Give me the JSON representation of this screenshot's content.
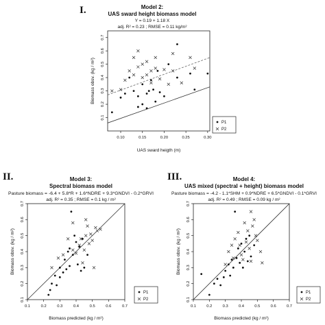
{
  "panels": {
    "p1": {
      "roman": "I.",
      "title1": "Model 2:",
      "title2": "UAS sward height biomass model",
      "eq": "Y = 0.19 + 1.18 X",
      "stats": "adj. R² = 0.23 ; RMSE = 0.11 kg/m²"
    },
    "p2": {
      "roman": "II.",
      "title1": "Model 3:",
      "title2": "Spectral biomass model",
      "eq": "Pasture biomass = -6.4 + 5.8*R + 1.6*NDRE + 9.3*GNDVI - 0.2*GRVI",
      "stats": "adj. R² = 0.35 ; RMSE = 0.1 kg / m²"
    },
    "p3": {
      "roman": "III.",
      "title1": "Model 4:",
      "title2": "UAS mixed (spectral + height) biomass model",
      "eq": "Pasture biomass = -4.2 - 1.1*SHM + 0.9*NDRE + 6.5*GNDVI - 0.1*GRVI",
      "stats": "adj. R² = 0.49 ; RMSE = 0.09 kg / m²"
    }
  },
  "chart_data": [
    {
      "type": "scatter",
      "xlabel": "UAS sward heigth (m)",
      "ylabel": "Biomass obsv. (kg / m²)",
      "xlim": [
        0.07,
        0.305
      ],
      "ylim": [
        0.0,
        0.75
      ],
      "xticks": [
        0.1,
        0.15,
        0.2,
        0.25,
        0.3
      ],
      "yticks": [
        0.1,
        0.2,
        0.3,
        0.4,
        0.5,
        0.6,
        0.7
      ],
      "xtick_labels": [
        "0.10",
        "0.15",
        "0.20",
        "0.25",
        "0.30"
      ],
      "ytick_labels": [
        "0.1",
        "0.2",
        "0.3",
        "0.4",
        "0.5",
        "0.6",
        "0.7"
      ],
      "lines": [
        {
          "style": "solid",
          "points": [
            [
              0.07,
              0.06
            ],
            [
              0.305,
              0.33
            ]
          ]
        },
        {
          "style": "dashed",
          "points": [
            [
              0.07,
              0.27
            ],
            [
              0.305,
              0.55
            ]
          ]
        }
      ],
      "legend": [
        "P1",
        "P2"
      ],
      "legend_position": "lower-right",
      "series": [
        {
          "name": "P1",
          "marker": "dot",
          "points": [
            [
              0.08,
              0.14
            ],
            [
              0.1,
              0.25
            ],
            [
              0.11,
              0.28
            ],
            [
              0.12,
              0.4
            ],
            [
              0.13,
              0.3
            ],
            [
              0.14,
              0.18
            ],
            [
              0.14,
              0.26
            ],
            [
              0.15,
              0.2
            ],
            [
              0.15,
              0.35
            ],
            [
              0.16,
              0.17
            ],
            [
              0.16,
              0.28
            ],
            [
              0.165,
              0.3
            ],
            [
              0.17,
              0.38
            ],
            [
              0.175,
              0.31
            ],
            [
              0.18,
              0.22
            ],
            [
              0.185,
              0.45
            ],
            [
              0.19,
              0.29
            ],
            [
              0.2,
              0.26
            ],
            [
              0.21,
              0.5
            ],
            [
              0.23,
              0.65
            ],
            [
              0.23,
              0.4
            ],
            [
              0.26,
              0.43
            ],
            [
              0.27,
              0.31
            ],
            [
              0.3,
              0.43
            ]
          ]
        },
        {
          "name": "P2",
          "marker": "x",
          "points": [
            [
              0.08,
              0.3
            ],
            [
              0.1,
              0.31
            ],
            [
              0.11,
              0.38
            ],
            [
              0.12,
              0.45
            ],
            [
              0.13,
              0.55
            ],
            [
              0.13,
              0.42
            ],
            [
              0.14,
              0.48
            ],
            [
              0.14,
              0.6
            ],
            [
              0.15,
              0.5
            ],
            [
              0.15,
              0.4
            ],
            [
              0.16,
              0.42
            ],
            [
              0.16,
              0.52
            ],
            [
              0.17,
              0.45
            ],
            [
              0.17,
              0.36
            ],
            [
              0.18,
              0.47
            ],
            [
              0.18,
              0.55
            ],
            [
              0.19,
              0.39
            ],
            [
              0.2,
              0.46
            ],
            [
              0.21,
              0.35
            ],
            [
              0.22,
              0.45
            ],
            [
              0.22,
              0.58
            ],
            [
              0.24,
              0.36
            ],
            [
              0.26,
              0.55
            ],
            [
              0.27,
              0.47
            ]
          ]
        }
      ]
    },
    {
      "type": "scatter",
      "xlabel": "Biomass predicted (kg / m²)",
      "ylabel": "Biomass obsv. (kg / m²)",
      "xlim": [
        0.1,
        0.7
      ],
      "ylim": [
        0.1,
        0.7
      ],
      "xticks": [
        0.1,
        0.2,
        0.3,
        0.4,
        0.5,
        0.6,
        0.7
      ],
      "yticks": [
        0.1,
        0.2,
        0.3,
        0.4,
        0.5,
        0.6,
        0.7
      ],
      "xtick_labels": [
        "0.1",
        "0.2",
        "0.3",
        "0.4",
        "0.5",
        "0.6",
        "0.7"
      ],
      "ytick_labels": [
        "0.1",
        "0.2",
        "0.3",
        "0.4",
        "0.5",
        "0.6",
        "0.7"
      ],
      "lines": [
        {
          "style": "solid",
          "points": [
            [
              0.1,
              0.1
            ],
            [
              0.7,
              0.7
            ]
          ]
        }
      ],
      "legend": [
        "P1",
        "P2"
      ],
      "legend_position": "lower-right",
      "series": [
        {
          "name": "P1",
          "marker": "dot",
          "points": [
            [
              0.23,
              0.13
            ],
            [
              0.24,
              0.16
            ],
            [
              0.25,
              0.2
            ],
            [
              0.27,
              0.25
            ],
            [
              0.28,
              0.19
            ],
            [
              0.3,
              0.24
            ],
            [
              0.3,
              0.3
            ],
            [
              0.32,
              0.27
            ],
            [
              0.33,
              0.35
            ],
            [
              0.34,
              0.29
            ],
            [
              0.35,
              0.4
            ],
            [
              0.36,
              0.42
            ],
            [
              0.36,
              0.31
            ],
            [
              0.37,
              0.65
            ],
            [
              0.38,
              0.38
            ],
            [
              0.39,
              0.5
            ],
            [
              0.4,
              0.46
            ],
            [
              0.41,
              0.32
            ],
            [
              0.42,
              0.43
            ],
            [
              0.43,
              0.28
            ],
            [
              0.44,
              0.48
            ],
            [
              0.45,
              0.3
            ],
            [
              0.47,
              0.38
            ]
          ]
        },
        {
          "name": "P2",
          "marker": "x",
          "points": [
            [
              0.25,
              0.3
            ],
            [
              0.29,
              0.36
            ],
            [
              0.32,
              0.38
            ],
            [
              0.35,
              0.48
            ],
            [
              0.38,
              0.58
            ],
            [
              0.38,
              0.41
            ],
            [
              0.4,
              0.39
            ],
            [
              0.42,
              0.44
            ],
            [
              0.43,
              0.48
            ],
            [
              0.44,
              0.33
            ],
            [
              0.45,
              0.41
            ],
            [
              0.46,
              0.6
            ],
            [
              0.47,
              0.56
            ],
            [
              0.48,
              0.45
            ],
            [
              0.49,
              0.51
            ],
            [
              0.5,
              0.47
            ],
            [
              0.51,
              0.3
            ],
            [
              0.52,
              0.55
            ],
            [
              0.53,
              0.53
            ],
            [
              0.55,
              0.54
            ],
            [
              0.46,
              0.5
            ]
          ]
        }
      ]
    },
    {
      "type": "scatter",
      "xlabel": "Biomass predicted (kg / m²)",
      "ylabel": "Biomass obsv. (kg / m²)",
      "xlim": [
        0.1,
        0.7
      ],
      "ylim": [
        0.1,
        0.7
      ],
      "xticks": [
        0.1,
        0.2,
        0.3,
        0.4,
        0.5,
        0.6,
        0.7
      ],
      "yticks": [
        0.1,
        0.2,
        0.3,
        0.4,
        0.5,
        0.6,
        0.7
      ],
      "xtick_labels": [
        "0.1",
        "0.2",
        "0.3",
        "0.4",
        "0.5",
        "0.6",
        "0.7"
      ],
      "ytick_labels": [
        "0.1",
        "0.2",
        "0.3",
        "0.4",
        "0.5",
        "0.6",
        "0.7"
      ],
      "lines": [
        {
          "style": "solid",
          "points": [
            [
              0.1,
              0.1
            ],
            [
              0.7,
              0.7
            ]
          ]
        }
      ],
      "legend": [
        "P1",
        "P2"
      ],
      "legend_position": "lower-right",
      "series": [
        {
          "name": "P1",
          "marker": "dot",
          "points": [
            [
              0.15,
              0.26
            ],
            [
              0.2,
              0.13
            ],
            [
              0.23,
              0.2
            ],
            [
              0.25,
              0.23
            ],
            [
              0.27,
              0.19
            ],
            [
              0.29,
              0.24
            ],
            [
              0.3,
              0.28
            ],
            [
              0.32,
              0.32
            ],
            [
              0.33,
              0.25
            ],
            [
              0.34,
              0.35
            ],
            [
              0.35,
              0.3
            ],
            [
              0.36,
              0.65
            ],
            [
              0.37,
              0.36
            ],
            [
              0.38,
              0.42
            ],
            [
              0.39,
              0.33
            ],
            [
              0.4,
              0.45
            ],
            [
              0.41,
              0.3
            ],
            [
              0.42,
              0.4
            ],
            [
              0.43,
              0.48
            ],
            [
              0.44,
              0.34
            ],
            [
              0.45,
              0.5
            ],
            [
              0.46,
              0.37
            ],
            [
              0.48,
              0.44
            ]
          ]
        },
        {
          "name": "P2",
          "marker": "x",
          "points": [
            [
              0.3,
              0.32
            ],
            [
              0.32,
              0.4
            ],
            [
              0.34,
              0.44
            ],
            [
              0.35,
              0.36
            ],
            [
              0.36,
              0.48
            ],
            [
              0.38,
              0.52
            ],
            [
              0.39,
              0.44
            ],
            [
              0.4,
              0.38
            ],
            [
              0.42,
              0.58
            ],
            [
              0.43,
              0.46
            ],
            [
              0.44,
              0.53
            ],
            [
              0.45,
              0.42
            ],
            [
              0.46,
              0.34
            ],
            [
              0.47,
              0.56
            ],
            [
              0.48,
              0.6
            ],
            [
              0.49,
              0.5
            ],
            [
              0.5,
              0.47
            ],
            [
              0.52,
              0.4
            ],
            [
              0.53,
              0.33
            ],
            [
              0.46,
              0.65
            ],
            [
              0.41,
              0.35
            ]
          ]
        }
      ]
    }
  ]
}
